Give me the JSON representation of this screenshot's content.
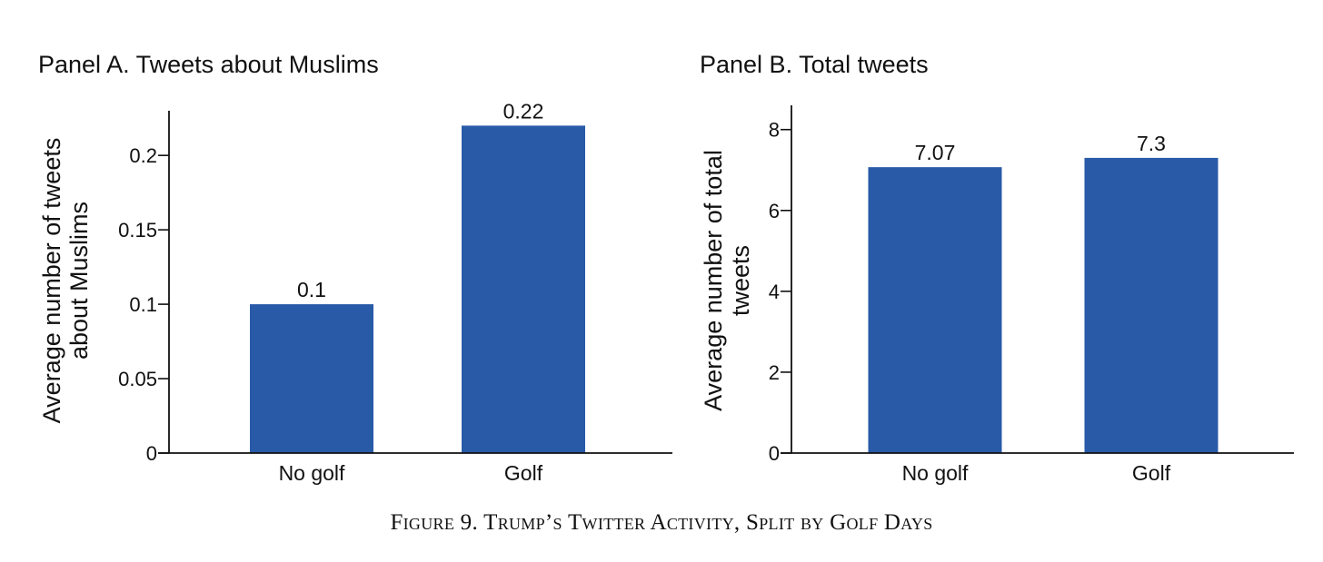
{
  "caption": "Figure 9. Trump’s Twitter Activity, Split by Golf Days",
  "chart_data": [
    {
      "type": "bar",
      "title": "Panel A. Tweets about Muslims",
      "ylabel": [
        "Average number of tweets",
        "about Muslims"
      ],
      "categories": [
        "No golf",
        "Golf"
      ],
      "values": [
        0.1,
        0.22
      ],
      "value_labels": [
        "0.1",
        "0.22"
      ],
      "ylim": [
        0,
        0.23
      ],
      "yticks": [
        0,
        0.05,
        0.1,
        0.15,
        0.2
      ],
      "ytick_labels": [
        "0",
        "0.05",
        "0.1",
        "0.15",
        "0.2"
      ],
      "bar_color": "#285aa8",
      "grid": false
    },
    {
      "type": "bar",
      "title": "Panel B. Total tweets",
      "ylabel": [
        "Average number of total",
        "tweets"
      ],
      "categories": [
        "No golf",
        "Golf"
      ],
      "values": [
        7.07,
        7.3
      ],
      "value_labels": [
        "7.07",
        "7.3"
      ],
      "ylim": [
        0,
        8.6
      ],
      "yticks": [
        0,
        2,
        4,
        6,
        8
      ],
      "ytick_labels": [
        "0",
        "2",
        "4",
        "6",
        "8"
      ],
      "bar_color": "#285aa8",
      "grid": false
    }
  ]
}
